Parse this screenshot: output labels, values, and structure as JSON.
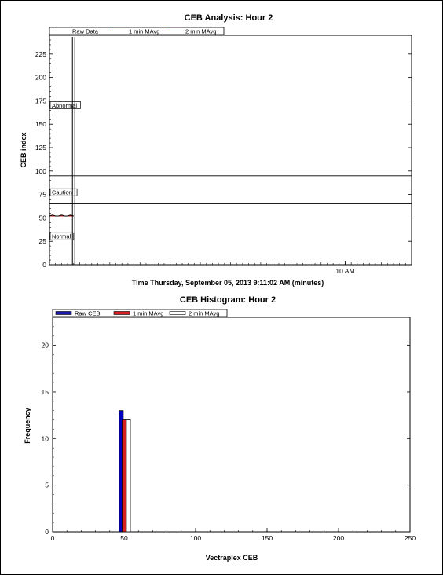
{
  "chart_data": [
    {
      "type": "line",
      "title": "CEB Analysis: Hour 2",
      "xlabel": "Time Thursday, September 05, 2013 9:11:02 AM (minutes)",
      "ylabel": "CEB index",
      "ylim": [
        0,
        245
      ],
      "yticks": [
        0,
        25,
        50,
        75,
        100,
        125,
        150,
        175,
        200,
        225
      ],
      "xlim": [
        0,
        60
      ],
      "xticks": [
        {
          "value": 49,
          "label": "10 AM"
        }
      ],
      "legend_position": "top",
      "legend": [
        {
          "name": "Raw Data",
          "color": "#000000"
        },
        {
          "name": "1 min MAvg",
          "color": "#d62020"
        },
        {
          "name": "2 min MAvg",
          "color": "#20a020"
        }
      ],
      "bands": [
        {
          "label": "Abnormal",
          "y": 170
        },
        {
          "label": "Caution",
          "y": 77
        },
        {
          "label": "Normal",
          "y": 30
        }
      ],
      "thresholds": [
        95,
        65
      ],
      "cursor_x": 4,
      "series": [
        {
          "name": "Raw Data",
          "color": "#000000",
          "x": [
            0,
            0.5,
            1,
            1.5,
            2,
            2.5,
            3,
            3.5,
            4
          ],
          "y": [
            52,
            53,
            52,
            52,
            53,
            52,
            52,
            53,
            52
          ]
        },
        {
          "name": "1 min MAvg",
          "color": "#d62020",
          "x": [
            0,
            1,
            2,
            3,
            4
          ],
          "y": [
            52,
            52,
            52,
            52,
            52
          ]
        },
        {
          "name": "2 min MAvg",
          "color": "#20a020",
          "x": [
            0,
            1,
            2,
            3,
            4
          ],
          "y": [
            52,
            52,
            52,
            52,
            52
          ]
        }
      ]
    },
    {
      "type": "bar",
      "title": "CEB Histogram: Hour 2",
      "xlabel": "Vectraplex CEB",
      "ylabel": "Frequency",
      "xlim": [
        0,
        250
      ],
      "xticks": [
        0,
        50,
        100,
        150,
        200,
        250
      ],
      "ylim": [
        0,
        23
      ],
      "yticks": [
        0,
        5,
        10,
        15,
        20
      ],
      "legend_position": "top-left",
      "legend": [
        {
          "name": "Raw CEB",
          "color": "#1a1aa8"
        },
        {
          "name": "1 min MAvg",
          "color": "#d62020"
        },
        {
          "name": "2 min MAvg",
          "color": "#ffffff"
        }
      ],
      "series": [
        {
          "name": "Raw CEB",
          "color": "#0000c0",
          "bins": [
            {
              "x": 48,
              "value": 13
            }
          ]
        },
        {
          "name": "1 min MAvg",
          "color": "#d62020",
          "bins": [
            {
              "x": 50,
              "value": 12
            }
          ]
        },
        {
          "name": "2 min MAvg",
          "color": "#ffffff",
          "bins": [
            {
              "x": 53,
              "value": 12
            }
          ]
        }
      ]
    }
  ]
}
